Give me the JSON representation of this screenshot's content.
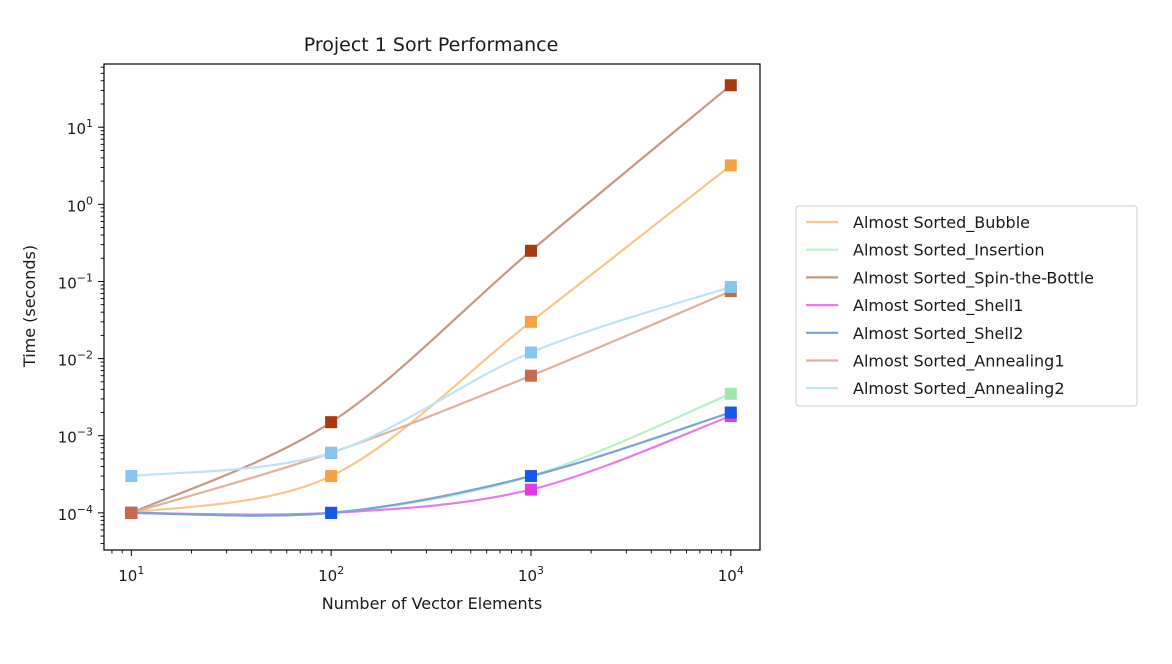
{
  "chart_data": {
    "type": "line",
    "title": "Project 1 Sort Performance",
    "xlabel": "Number of Vector Elements",
    "ylabel": "Time (seconds)",
    "xscale": "log",
    "yscale": "log",
    "xlim": [
      7.3,
      14000
    ],
    "ylim": [
      3.3e-05,
      66
    ],
    "x_ticks": [
      {
        "value": 10,
        "base": "10",
        "exp": "1"
      },
      {
        "value": 100,
        "base": "10",
        "exp": "2"
      },
      {
        "value": 1000,
        "base": "10",
        "exp": "3"
      },
      {
        "value": 10000,
        "base": "10",
        "exp": "4"
      }
    ],
    "y_ticks": [
      {
        "value": 0.0001,
        "base": "10",
        "exp": "−4"
      },
      {
        "value": 0.001,
        "base": "10",
        "exp": "−3"
      },
      {
        "value": 0.01,
        "base": "10",
        "exp": "−2"
      },
      {
        "value": 0.1,
        "base": "10",
        "exp": "−1"
      },
      {
        "value": 1,
        "base": "10",
        "exp": "0"
      },
      {
        "value": 10,
        "base": "10",
        "exp": "1"
      }
    ],
    "grid": false,
    "legend_position": "outside-right",
    "x": [
      10,
      100,
      1000,
      10000
    ],
    "series": [
      {
        "name": "Almost Sorted_Bubble",
        "values": [
          0.0001,
          0.0003,
          0.03,
          3.2
        ],
        "line_color": "#f5c98a",
        "marker_color": "#f7a241"
      },
      {
        "name": "Almost Sorted_Insertion",
        "values": [
          0.0001,
          0.0001,
          0.0003,
          0.0035
        ],
        "line_color": "#b9f0c8",
        "marker_color": "#9be8a8"
      },
      {
        "name": "Almost Sorted_Spin-the-Bottle",
        "values": [
          0.0001,
          0.0015,
          0.25,
          35
        ],
        "line_color": "#c49a86",
        "marker_color": "#a93a0e"
      },
      {
        "name": "Almost Sorted_Shell1",
        "values": [
          0.0001,
          0.0001,
          0.0002,
          0.0018
        ],
        "line_color": "#e77ce6",
        "marker_color": "#e23ce0"
      },
      {
        "name": "Almost Sorted_Shell2",
        "values": [
          0.0001,
          0.0001,
          0.0003,
          0.002
        ],
        "line_color": "#7ba3d8",
        "marker_color": "#1659e6"
      },
      {
        "name": "Almost Sorted_Annealing1",
        "values": [
          0.0001,
          0.0006,
          0.006,
          0.075
        ],
        "line_color": "#ddb3a0",
        "marker_color": "#c96a4e"
      },
      {
        "name": "Almost Sorted_Annealing2",
        "values": [
          0.0003,
          0.0006,
          0.012,
          0.085
        ],
        "line_color": "#bfe3f5",
        "marker_color": "#87c6ee"
      }
    ]
  }
}
